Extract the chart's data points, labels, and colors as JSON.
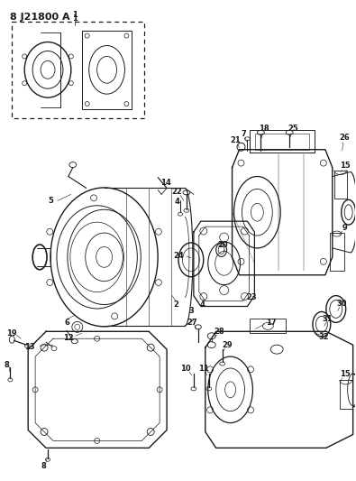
{
  "title": "8 J21800 A",
  "bg_color": "#ffffff",
  "line_color": "#1a1a1a",
  "fig_width": 3.95,
  "fig_height": 5.33,
  "dpi": 100
}
